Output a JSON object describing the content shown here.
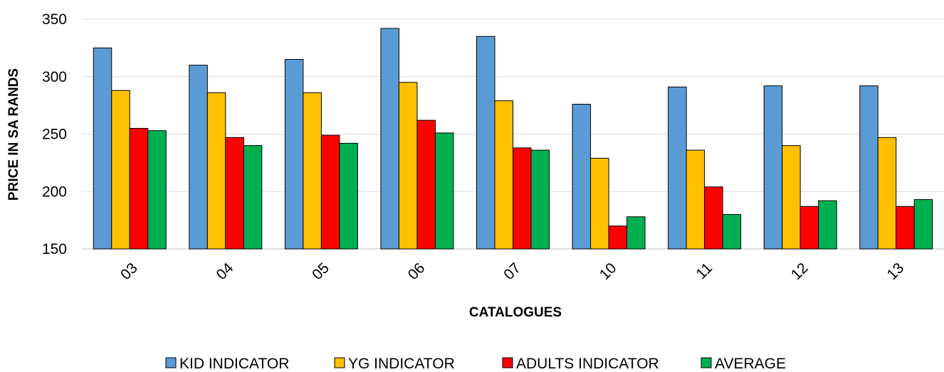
{
  "chart_data": {
    "type": "bar",
    "xlabel": "CATALOGUES",
    "ylabel": "PRICE IN SA RANDS",
    "ylim": [
      150,
      350
    ],
    "yticks": [
      150,
      200,
      250,
      300,
      350
    ],
    "grid": true,
    "legend_position": "bottom",
    "categories": [
      "03",
      "04",
      "05",
      "06",
      "07",
      "10",
      "11",
      "12",
      "13"
    ],
    "series": [
      {
        "name": "KID INDICATOR",
        "color": "#5B9BD5",
        "values": [
          325,
          310,
          315,
          342,
          335,
          276,
          291,
          292,
          292
        ]
      },
      {
        "name": "YG INDICATOR",
        "color": "#FFC000",
        "values": [
          288,
          286,
          286,
          295,
          279,
          229,
          236,
          240,
          247
        ]
      },
      {
        "name": "ADULTS INDICATOR",
        "color": "#FF0000",
        "values": [
          255,
          247,
          249,
          262,
          238,
          170,
          204,
          187,
          187
        ]
      },
      {
        "name": "AVERAGE",
        "color": "#00B050",
        "values": [
          253,
          240,
          242,
          251,
          236,
          178,
          180,
          192,
          193
        ]
      }
    ]
  }
}
